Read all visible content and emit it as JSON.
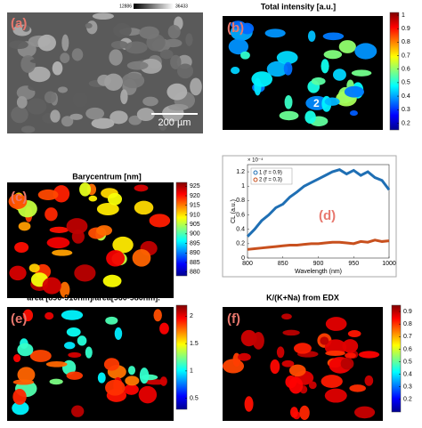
{
  "panels": {
    "a": {
      "label": "(a)",
      "scale_bar": "200 µm",
      "intensity_range": [
        12886,
        36433
      ]
    },
    "b": {
      "label": "(b)",
      "title": "Total intensity [a.u.]",
      "annotations": [
        "2"
      ],
      "colorbar": {
        "lim": [
          0.15,
          1.02
        ],
        "ticks": [
          0.2,
          0.3,
          0.4,
          0.5,
          0.6,
          0.7,
          0.8,
          0.9,
          1
        ]
      }
    },
    "c": {
      "label": "(c)",
      "title": "Barycentrum [nm]",
      "colorbar": {
        "lim": [
          878,
          927
        ],
        "ticks": [
          880,
          885,
          890,
          895,
          900,
          905,
          910,
          915,
          920,
          925
        ]
      }
    },
    "e": {
      "label": "(e)",
      "title": "area [890-910nm]/area[960-980nm].",
      "colorbar": {
        "lim": [
          0.3,
          2.2
        ],
        "ticks": [
          0.5,
          1,
          1.5,
          2
        ]
      }
    },
    "f": {
      "label": "(f)",
      "title": "K/(K+Na) from EDX",
      "colorbar": {
        "lim": [
          0.1,
          0.95
        ],
        "ticks": [
          0.2,
          0.3,
          0.4,
          0.5,
          0.6,
          0.7,
          0.8,
          0.9
        ]
      }
    }
  },
  "chart_data": {
    "type": "line",
    "label": "(d)",
    "x_label": "Wavelength (nm)",
    "y_label": "CL (a.u.)",
    "y_exponent": "× 10⁻⁴",
    "x": [
      800,
      810,
      820,
      830,
      840,
      850,
      860,
      870,
      880,
      890,
      900,
      910,
      920,
      930,
      940,
      950,
      960,
      970,
      980,
      990,
      1000
    ],
    "series": [
      {
        "name": "1 (f = 0.9)",
        "color": "#1f6fb4",
        "values": [
          0.3,
          0.4,
          0.52,
          0.6,
          0.7,
          0.75,
          0.85,
          0.92,
          1.0,
          1.05,
          1.1,
          1.15,
          1.2,
          1.23,
          1.17,
          1.22,
          1.15,
          1.2,
          1.12,
          1.08,
          0.95
        ]
      },
      {
        "name": "2 (f = 0.3)",
        "color": "#c8501e",
        "values": [
          0.12,
          0.13,
          0.14,
          0.15,
          0.16,
          0.17,
          0.18,
          0.18,
          0.19,
          0.2,
          0.2,
          0.21,
          0.22,
          0.22,
          0.21,
          0.2,
          0.23,
          0.22,
          0.25,
          0.23,
          0.24
        ]
      }
    ],
    "xlim": [
      800,
      1000
    ],
    "xticks": [
      800,
      850,
      900,
      950,
      1000
    ],
    "ylim": [
      0,
      1.3
    ],
    "yticks": [
      0,
      0.2,
      0.4,
      0.6,
      0.8,
      1,
      1.2
    ],
    "legend": "upper left"
  }
}
